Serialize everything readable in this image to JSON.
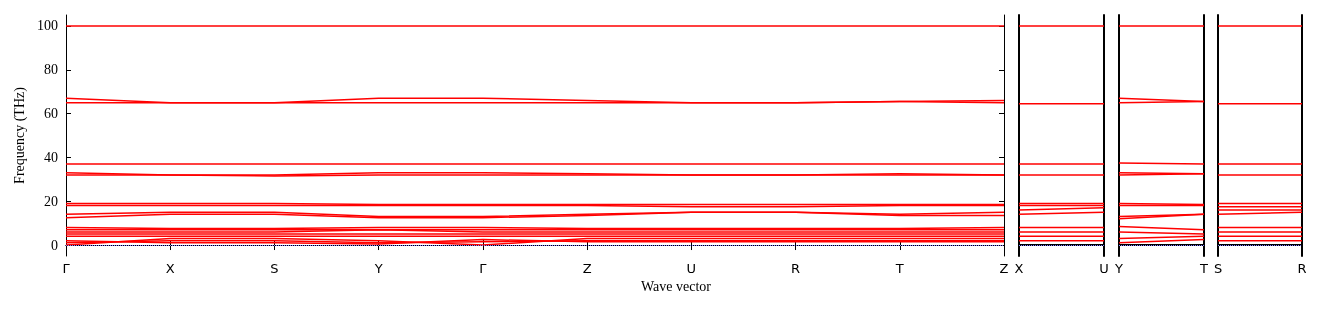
{
  "chart_data": [
    {
      "type": "line",
      "xlabel": "Wave vector",
      "ylabel": "Frequency (THz)",
      "categories": [
        "Γ",
        "X",
        "S",
        "Y",
        "Γ",
        "Z",
        "U",
        "R",
        "T",
        "Z"
      ],
      "ylim": [
        -5,
        105
      ],
      "yticks": [
        0,
        20,
        40,
        60,
        80,
        100
      ],
      "grid": false,
      "marker": "none",
      "ref_lines": [
        {
          "axis": "y",
          "value": 0,
          "color": "#8080ff",
          "line_style": "dotted"
        }
      ],
      "series": [
        {
          "color": "#ff0000",
          "values": [
            100,
            100,
            100,
            100,
            100,
            100,
            100,
            100,
            100,
            100
          ]
        },
        {
          "color": "#ff0000",
          "values": [
            67,
            65,
            65,
            67,
            67,
            66,
            65,
            65,
            65.5,
            66
          ]
        },
        {
          "color": "#ff0000",
          "values": [
            65,
            65,
            65,
            65,
            65,
            65,
            65,
            65,
            65.5,
            65
          ]
        },
        {
          "color": "#ff0000",
          "values": [
            37,
            37,
            37,
            37,
            37,
            37,
            37,
            37,
            37,
            37
          ]
        },
        {
          "color": "#ff0000",
          "values": [
            33,
            32,
            32,
            33,
            33,
            32.5,
            32,
            32,
            32.5,
            32
          ]
        },
        {
          "color": "#ff0000",
          "values": [
            32,
            32,
            31.5,
            32,
            32,
            32,
            32,
            32,
            32,
            32
          ]
        },
        {
          "color": "#ff0000",
          "values": [
            19,
            19,
            19,
            18.5,
            18.5,
            18.5,
            18.5,
            18.5,
            18.5,
            18.5
          ]
        },
        {
          "color": "#ff0000",
          "values": [
            18,
            18,
            18,
            18,
            18,
            18,
            17.5,
            17.5,
            18,
            18
          ]
        },
        {
          "color": "#ff0000",
          "values": [
            14,
            15,
            15,
            13,
            13,
            14,
            15,
            15,
            14,
            15
          ]
        },
        {
          "color": "#ff0000",
          "values": [
            12.5,
            14,
            14,
            12.5,
            12.5,
            13.5,
            15,
            15,
            13.5,
            13.5
          ]
        },
        {
          "color": "#ff0000",
          "values": [
            8,
            7.5,
            7.5,
            8,
            8,
            7.5,
            7.5,
            7.5,
            7.5,
            8
          ]
        },
        {
          "color": "#ff0000",
          "values": [
            7,
            7,
            7,
            7,
            7,
            7,
            7,
            7,
            7,
            7
          ]
        },
        {
          "color": "#ff0000",
          "values": [
            6,
            6,
            6,
            7,
            6,
            6,
            6,
            6,
            6,
            6
          ]
        },
        {
          "color": "#ff0000",
          "values": [
            5,
            5,
            5,
            5,
            5,
            5,
            5,
            5,
            5,
            5
          ]
        },
        {
          "color": "#ff0000",
          "values": [
            4,
            4,
            4,
            4,
            4,
            4,
            4,
            4,
            4,
            4
          ]
        },
        {
          "color": "#ff0000",
          "values": [
            0,
            3,
            3,
            2,
            0,
            3,
            3,
            3,
            3,
            3
          ]
        },
        {
          "color": "#ff0000",
          "values": [
            1,
            2,
            2,
            1,
            1.5,
            2,
            2,
            2,
            2,
            2
          ]
        },
        {
          "color": "#ff0000",
          "values": [
            2,
            1,
            1,
            0.5,
            2.5,
            1.5,
            1.5,
            1.5,
            1.5,
            1.5
          ]
        }
      ]
    },
    {
      "type": "line",
      "categories": [
        "X",
        "U"
      ],
      "ylim": [
        -5,
        105
      ],
      "tick_labels": "x",
      "marker": "none",
      "ref_lines": [
        {
          "axis": "y",
          "value": 0,
          "color": "#8080ff",
          "line_style": "dotted"
        }
      ],
      "series": [
        {
          "color": "#ff0000",
          "values": [
            100,
            100
          ]
        },
        {
          "color": "#ff0000",
          "values": [
            64.5,
            64.5
          ]
        },
        {
          "color": "#ff0000",
          "values": [
            37,
            37
          ]
        },
        {
          "color": "#ff0000",
          "values": [
            32,
            32
          ]
        },
        {
          "color": "#ff0000",
          "values": [
            19,
            19
          ]
        },
        {
          "color": "#ff0000",
          "values": [
            18,
            18
          ]
        },
        {
          "color": "#ff0000",
          "values": [
            16,
            17
          ]
        },
        {
          "color": "#ff0000",
          "values": [
            14,
            15
          ]
        },
        {
          "color": "#ff0000",
          "values": [
            8,
            8
          ]
        },
        {
          "color": "#ff0000",
          "values": [
            6,
            6
          ]
        },
        {
          "color": "#ff0000",
          "values": [
            4,
            4
          ]
        },
        {
          "color": "#ff0000",
          "values": [
            2,
            2
          ]
        }
      ]
    },
    {
      "type": "line",
      "categories": [
        "Y",
        "T"
      ],
      "ylim": [
        -5,
        105
      ],
      "tick_labels": "x",
      "marker": "none",
      "ref_lines": [
        {
          "axis": "y",
          "value": 0,
          "color": "#8080ff",
          "line_style": "dotted"
        }
      ],
      "series": [
        {
          "color": "#ff0000",
          "values": [
            100,
            100
          ]
        },
        {
          "color": "#ff0000",
          "values": [
            67,
            65.5
          ]
        },
        {
          "color": "#ff0000",
          "values": [
            65,
            65.5
          ]
        },
        {
          "color": "#ff0000",
          "values": [
            37.5,
            37
          ]
        },
        {
          "color": "#ff0000",
          "values": [
            33,
            32.5
          ]
        },
        {
          "color": "#ff0000",
          "values": [
            32,
            32.5
          ]
        },
        {
          "color": "#ff0000",
          "values": [
            19,
            18.5
          ]
        },
        {
          "color": "#ff0000",
          "values": [
            18,
            18
          ]
        },
        {
          "color": "#ff0000",
          "values": [
            13,
            14
          ]
        },
        {
          "color": "#ff0000",
          "values": [
            12,
            14
          ]
        },
        {
          "color": "#ff0000",
          "values": [
            8.5,
            7
          ]
        },
        {
          "color": "#ff0000",
          "values": [
            6,
            5
          ]
        },
        {
          "color": "#ff0000",
          "values": [
            3,
            4
          ]
        },
        {
          "color": "#ff0000",
          "values": [
            1,
            2.5
          ]
        }
      ]
    },
    {
      "type": "line",
      "categories": [
        "S",
        "R"
      ],
      "ylim": [
        -5,
        105
      ],
      "tick_labels": "x",
      "marker": "none",
      "ref_lines": [
        {
          "axis": "y",
          "value": 0,
          "color": "#8080ff",
          "line_style": "dotted"
        }
      ],
      "series": [
        {
          "color": "#ff0000",
          "values": [
            100,
            100
          ]
        },
        {
          "color": "#ff0000",
          "values": [
            64.5,
            64.5
          ]
        },
        {
          "color": "#ff0000",
          "values": [
            37,
            37
          ]
        },
        {
          "color": "#ff0000",
          "values": [
            32,
            32
          ]
        },
        {
          "color": "#ff0000",
          "values": [
            19,
            19
          ]
        },
        {
          "color": "#ff0000",
          "values": [
            17.5,
            17.5
          ]
        },
        {
          "color": "#ff0000",
          "values": [
            16,
            16
          ]
        },
        {
          "color": "#ff0000",
          "values": [
            14,
            15
          ]
        },
        {
          "color": "#ff0000",
          "values": [
            8,
            8
          ]
        },
        {
          "color": "#ff0000",
          "values": [
            6,
            6
          ]
        },
        {
          "color": "#ff0000",
          "values": [
            4,
            4
          ]
        },
        {
          "color": "#ff0000",
          "values": [
            2,
            2
          ]
        }
      ]
    }
  ]
}
